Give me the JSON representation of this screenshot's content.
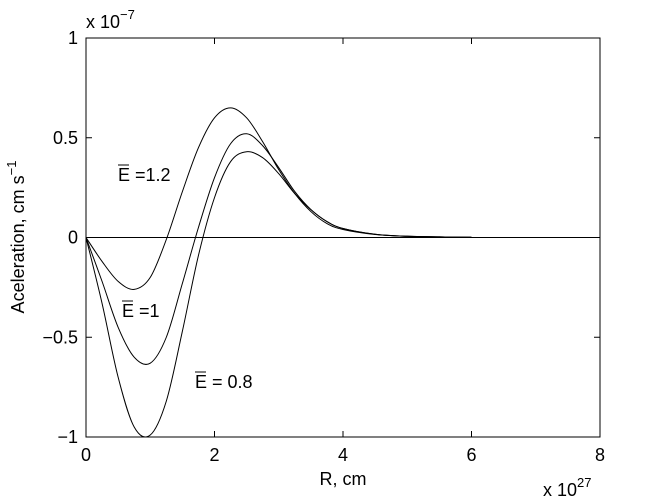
{
  "chart_data": {
    "type": "line",
    "xlabel": "R, cm",
    "ylabel": "Aceleration, cm s",
    "ylabel_sup": "−1",
    "x_multiplier": "x 10",
    "x_exponent": "27",
    "y_multiplier": "x 10",
    "y_exponent": "−7",
    "xlim": [
      0,
      8
    ],
    "ylim": [
      -1,
      1
    ],
    "xticks": [
      0,
      2,
      4,
      6,
      8
    ],
    "yticks": [
      {
        "value": -1,
        "label": "−1"
      },
      {
        "value": -0.5,
        "label": "−0.5"
      },
      0,
      0.5,
      1
    ],
    "annotations": [
      "E =1.2",
      "E =1",
      "E = 0.8"
    ],
    "series": [
      {
        "color": "#000000",
        "x": [
          0,
          0.25,
          0.5,
          0.75,
          1.0,
          1.25,
          1.5,
          1.75,
          2.0,
          2.25,
          2.5,
          2.75,
          3.0,
          3.25,
          3.5,
          3.75,
          4.0,
          4.5,
          5.0,
          5.5,
          6.0
        ],
        "values": [
          0,
          -0.12,
          -0.22,
          -0.26,
          -0.2,
          -0.01,
          0.23,
          0.45,
          0.6,
          0.65,
          0.6,
          0.48,
          0.34,
          0.22,
          0.13,
          0.07,
          0.04,
          0.015,
          0.006,
          0.003,
          0.001
        ]
      },
      {
        "color": "#000000",
        "x": [
          0,
          0.25,
          0.5,
          0.75,
          1.0,
          1.25,
          1.5,
          1.75,
          2.0,
          2.25,
          2.5,
          2.75,
          3.0,
          3.25,
          3.5,
          3.75,
          4.0,
          4.5,
          5.0,
          5.5,
          6.0
        ],
        "values": [
          0,
          -0.22,
          -0.45,
          -0.6,
          -0.63,
          -0.5,
          -0.23,
          0.05,
          0.3,
          0.47,
          0.52,
          0.46,
          0.35,
          0.23,
          0.14,
          0.08,
          0.045,
          0.016,
          0.006,
          0.003,
          0.001
        ]
      },
      {
        "color": "#000000",
        "x": [
          0,
          0.25,
          0.5,
          0.75,
          1.0,
          1.25,
          1.5,
          1.75,
          2.0,
          2.25,
          2.5,
          2.75,
          3.0,
          3.25,
          3.5,
          3.75,
          4.0,
          4.5,
          5.0,
          5.5,
          6.0
        ],
        "values": [
          0,
          -0.33,
          -0.7,
          -0.95,
          -0.99,
          -0.82,
          -0.47,
          -0.09,
          0.2,
          0.38,
          0.43,
          0.4,
          0.32,
          0.22,
          0.14,
          0.08,
          0.045,
          0.016,
          0.006,
          0.003,
          0.001
        ]
      },
      {
        "color": "#000000",
        "x": [
          0,
          8
        ],
        "values": [
          0,
          0
        ]
      }
    ]
  }
}
